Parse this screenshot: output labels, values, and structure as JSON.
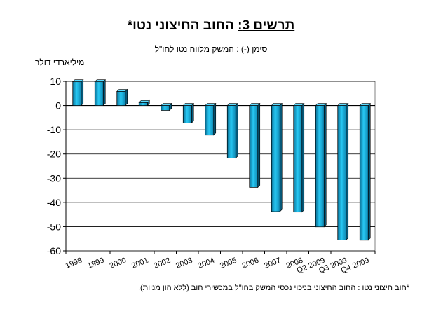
{
  "chart_data": {
    "type": "bar",
    "title_main": "החוב החיצוני נטו*",
    "title_prefix": "תרשים 3:",
    "subtitle": "סימן (-) : המשק מלווה נטו לחו\"ל",
    "ylabel": "מיליארדי דולר",
    "footnote": "*חוב חיצוני נטו : החוב החיצוני בניכוי נכסי המשק בחו\"ל במכשירי חוב (ללא הון מניות).",
    "categories": [
      "1998",
      "1999",
      "2000",
      "2001",
      "2002",
      "2003",
      "2004",
      "2005",
      "2006",
      "2007",
      "2008",
      "Q2 2009",
      "Q3 2009",
      "Q4 2009"
    ],
    "values": [
      9.8,
      9.8,
      5.8,
      1.2,
      -2.0,
      -7.2,
      -12.2,
      -21.7,
      -33.8,
      -43.8,
      -44.0,
      -50.1,
      -55.5,
      -55.6
    ],
    "ylim": [
      -60,
      10
    ],
    "yticks": [
      10,
      0,
      -10,
      -20,
      -30,
      -40,
      -50,
      -60
    ],
    "ytick_labels": [
      "10",
      "0",
      "-10",
      "-20",
      "-30",
      "-40",
      "-50",
      "-60"
    ],
    "grid": true,
    "legend": "none",
    "bar_color": "#1ab8e6"
  }
}
